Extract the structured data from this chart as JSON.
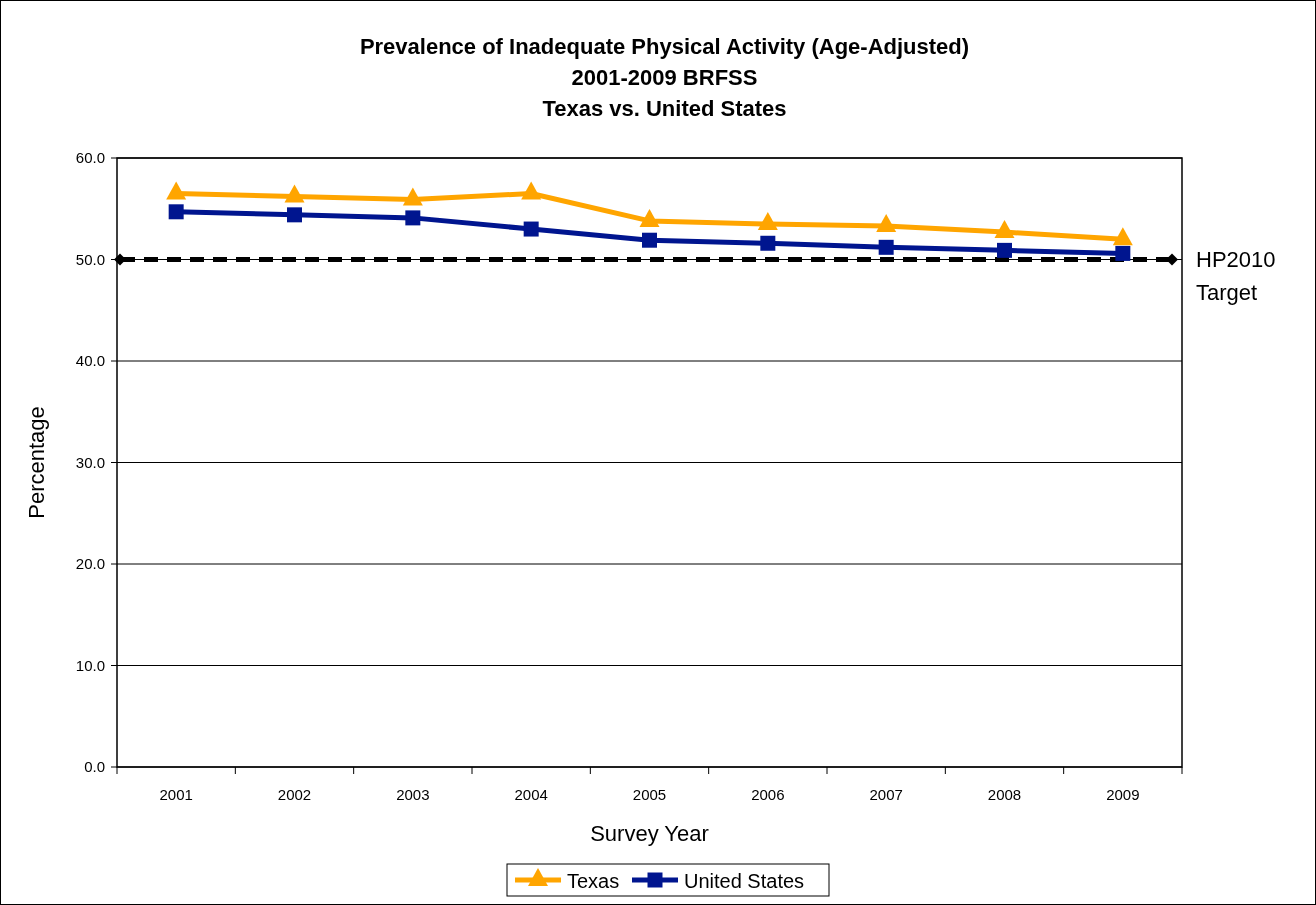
{
  "chart_data": {
    "type": "line",
    "title": "Prevalence of Inadequate Physical Activity (Age-Adjusted)\n2001-2009 BRFSS\nTexas vs. United States",
    "xlabel": "Survey Year",
    "ylabel": "Percentage",
    "categories": [
      "2001",
      "2002",
      "2003",
      "2004",
      "2005",
      "2006",
      "2007",
      "2008",
      "2009"
    ],
    "series": [
      {
        "name": "Texas",
        "color": "#ffa500",
        "marker": "triangle",
        "values": [
          56.5,
          56.2,
          55.9,
          56.5,
          53.8,
          53.5,
          53.3,
          52.7,
          52.0
        ]
      },
      {
        "name": "United States",
        "color": "#00158f",
        "marker": "square",
        "values": [
          54.7,
          54.4,
          54.1,
          53.0,
          51.9,
          51.6,
          51.2,
          50.9,
          50.6
        ]
      }
    ],
    "ylim": [
      0,
      60
    ],
    "yticks": [
      {
        "value": 0,
        "label": "0.0"
      },
      {
        "value": 10,
        "label": "10.0"
      },
      {
        "value": 20,
        "label": "20.0"
      },
      {
        "value": 30,
        "label": "30.0"
      },
      {
        "value": 40,
        "label": "40.0"
      },
      {
        "value": 50,
        "label": "50.0"
      },
      {
        "value": 60,
        "label": "60.0"
      }
    ],
    "grid": "y",
    "legend": "bottom",
    "ref_lines": [
      {
        "axis": "y",
        "value": 50,
        "label": "HP2010\nTarget",
        "color": "#000000",
        "line_style": "dashed"
      }
    ]
  }
}
